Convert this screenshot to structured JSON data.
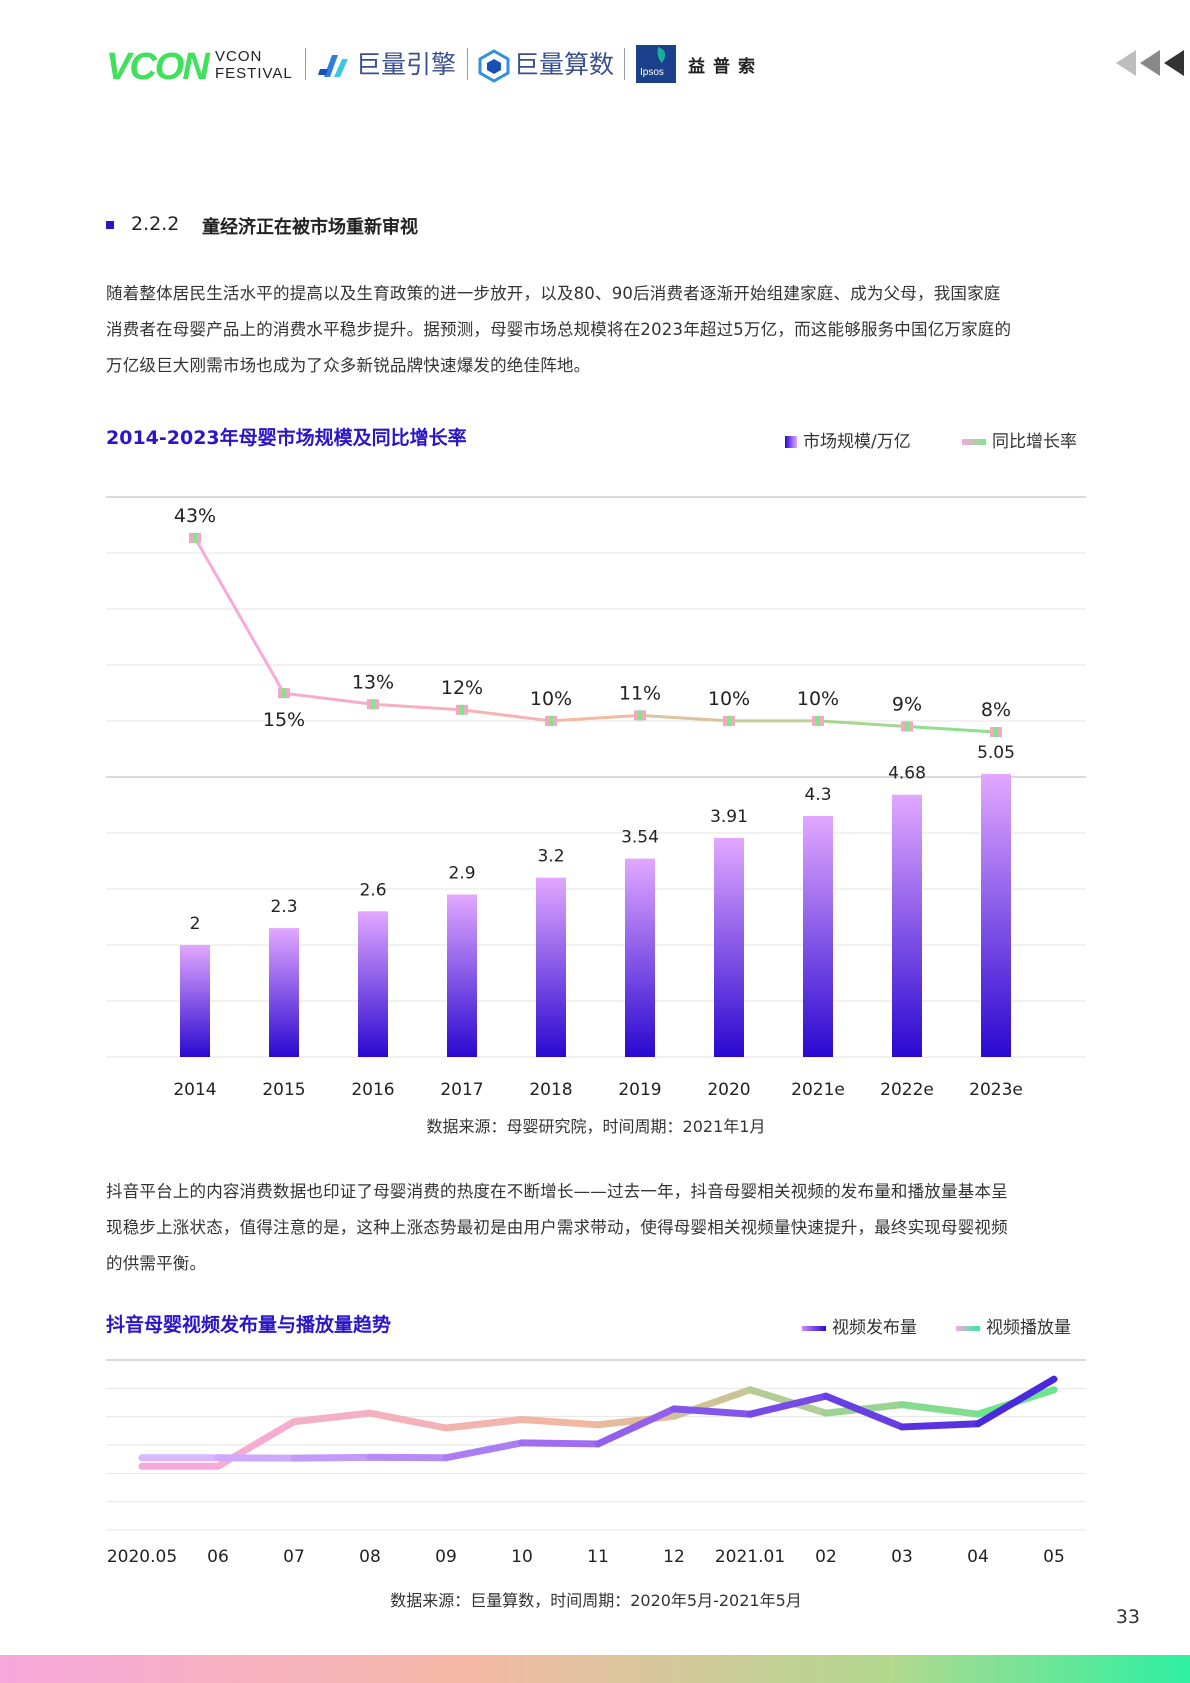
{
  "header": {
    "vcon_logo": "VCON",
    "vcon_sub_1": "VCON",
    "vcon_sub_2": "FESTIVAL",
    "brand1": "巨量引擎",
    "brand2": "巨量算数",
    "ipsos_logo": "Ipsos",
    "ipsos_cn": "益普索"
  },
  "section": {
    "number": "2.2.2",
    "title": "童经济正在被市场重新审视"
  },
  "paragraph1": [
    "随着整体居民生活水平的提高以及生育政策的进一步放开，以及80、90后消费者逐渐开始组建家庭、成为父母，我国家庭",
    "消费者在母婴产品上的消费水平稳步提升。据预测，母婴市场总规模将在2023年超过5万亿，而这能够服务中国亿万家庭的",
    "万亿级巨大刚需市场也成为了众多新锐品牌快速爆发的绝佳阵地。"
  ],
  "chart1": {
    "title": "2014-2023年母婴市场规模及同比增长率",
    "legend": [
      "市场规模/万亿",
      "同比增长率"
    ],
    "source": "数据来源：母婴研究院，时间周期：2021年1月"
  },
  "paragraph2": [
    "抖音平台上的内容消费数据也印证了母婴消费的热度在不断增长——过去一年，抖音母婴相关视频的发布量和播放量基本呈",
    "现稳步上涨状态，值得注意的是，这种上涨态势最初是由用户需求带动，使得母婴相关视频量快速提升，最终实现母婴视频",
    "的供需平衡。"
  ],
  "chart2": {
    "title": "抖音母婴视频发布量与播放量趋势",
    "legend": [
      "视频发布量",
      "视频播放量"
    ],
    "source": "数据来源：巨量算数，时间周期：2020年5月-2021年5月"
  },
  "page_number": "33",
  "colors": {
    "accent": "#2a16c8",
    "bar_top": "#e2a8ff",
    "bar_bottom": "#2a08d0",
    "line_pink": "#f7a8dc",
    "line_green": "#7be88a",
    "line_purple": "#5b34e0"
  },
  "chart_data": [
    {
      "type": "bar",
      "categories": [
        "2014",
        "2015",
        "2016",
        "2017",
        "2018",
        "2019",
        "2020",
        "2021e",
        "2022e",
        "2023e"
      ],
      "series": [
        {
          "name": "市场规模/万亿",
          "type": "bar",
          "values": [
            2,
            2.3,
            2.6,
            2.9,
            3.2,
            3.54,
            3.91,
            4.3,
            4.68,
            5.05
          ],
          "labels": [
            "2",
            "2.3",
            "2.6",
            "2.9",
            "3.2",
            "3.54",
            "3.91",
            "4.3",
            "4.68",
            "5.05"
          ]
        },
        {
          "name": "同比增长率",
          "type": "line",
          "values": [
            43,
            15,
            13,
            12,
            10,
            11,
            10,
            10,
            9,
            8
          ],
          "labels": [
            "43%",
            "15%",
            "13%",
            "12%",
            "10%",
            "11%",
            "10%",
            "10%",
            "9%",
            "8%"
          ]
        }
      ],
      "title": "2014-2023年母婴市场规模及同比增长率",
      "grid": true,
      "legend_position": "top-right"
    },
    {
      "type": "line",
      "categories": [
        "2020.05",
        "06",
        "07",
        "08",
        "09",
        "10",
        "11",
        "12",
        "2021.01",
        "02",
        "03",
        "04",
        "05"
      ],
      "series": [
        {
          "name": "视频发布量",
          "values": [
            3.4,
            3.4,
            3.38,
            3.42,
            3.4,
            4.1,
            4.05,
            5.7,
            5.45,
            6.3,
            4.85,
            5.0,
            7.1
          ]
        },
        {
          "name": "视频播放量",
          "values": [
            3.0,
            3.0,
            5.1,
            5.5,
            4.8,
            5.2,
            4.95,
            5.35,
            6.6,
            5.5,
            5.9,
            5.45,
            6.6
          ]
        }
      ],
      "title": "抖音母婴视频发布量与播放量趋势",
      "ylim": [
        0,
        8
      ],
      "grid": true,
      "legend_position": "top-right"
    }
  ]
}
